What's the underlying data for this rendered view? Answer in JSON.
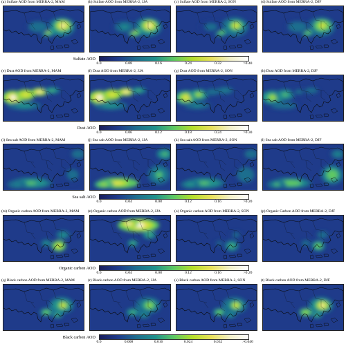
{
  "figure": {
    "rows": [
      {
        "variable": "Sulfate",
        "panels": [
          {
            "title": "(a) Sulfate AOD from MERRA-2, MAM"
          },
          {
            "title": "(b) Sulfate AOD from MERRA-2, JJA"
          },
          {
            "title": "(c) Sulfate AOD from MERRA-2, SON"
          },
          {
            "title": "(d) Sulfate AOD from MERRA-2, DJF"
          }
        ],
        "colorbar": {
          "label": "Sulfate AOD",
          "ticks": [
            "0.0",
            "0.08",
            "0.16",
            "0.24",
            "0.32",
            ">0.40"
          ]
        }
      },
      {
        "variable": "Dust",
        "panels": [
          {
            "title": "(e) Dust AOD from MERRA-2, MAM"
          },
          {
            "title": "(f) Dust AOD from MERRA-2, JJA"
          },
          {
            "title": "(g) Dust AOD from MERRA-2, SON"
          },
          {
            "title": "(h) Dust AOD from MERRA-2, DJF"
          }
        ],
        "colorbar": {
          "label": "Dust AOD",
          "ticks": [
            "0.0",
            "0.06",
            "0.12",
            "0.18",
            "0.24",
            ">0.30"
          ]
        }
      },
      {
        "variable": "Sea salt",
        "panels": [
          {
            "title": "(i) Sea salt AOD from MERRA-2, MAM"
          },
          {
            "title": "(j) Sea salt AOD from MERRA-2, JJA"
          },
          {
            "title": "(k) Sea salt AOD from MERRA-2, SON"
          },
          {
            "title": "(l) Sea salt AOD from MERRA-2, DJF"
          }
        ],
        "colorbar": {
          "label": "Sea salt AOD",
          "ticks": [
            "0.0",
            "0.04",
            "0.08",
            "0.12",
            "0.16",
            ">0.20"
          ]
        }
      },
      {
        "variable": "Organic carbon",
        "panels": [
          {
            "title": "(m) Organic carbon AOD from MERRA-2, MAM"
          },
          {
            "title": "(n) Organic carbon AOD from MERRA-2, JJA"
          },
          {
            "title": "(o) Organic carbon AOD from MERRA-2, SON"
          },
          {
            "title": "(p) Organic Carbon AOD from MERRA-2, DJF"
          }
        ],
        "colorbar": {
          "label": "Organic carbon AOD",
          "ticks": [
            "0.0",
            "0.04",
            "0.08",
            "0.12",
            "0.16",
            ">0.20"
          ]
        }
      },
      {
        "variable": "Black carbon",
        "panels": [
          {
            "title": "(q) Black carbon AOD from MERRA-2, MAM"
          },
          {
            "title": "(r) Black carbon AOD from MERRA-2, JJA"
          },
          {
            "title": "(s) Black carbon AOD from MERRA-2, SON"
          },
          {
            "title": "(t) Black carbon AOD from MERRA-2, DJF"
          }
        ],
        "colorbar": {
          "label": "Black carbon AOD",
          "ticks": [
            "0.0",
            "0.008",
            "0.016",
            "0.024",
            "0.032",
            ">0.040"
          ]
        }
      }
    ],
    "colormap": [
      "#1a1f5e",
      "#1f3b8a",
      "#1f6e8e",
      "#21918c",
      "#5ec962",
      "#b5de2b",
      "#e8e05a",
      "#f2f0c8",
      "#ffffff"
    ],
    "land_outline_color": "#0a0a0a"
  }
}
